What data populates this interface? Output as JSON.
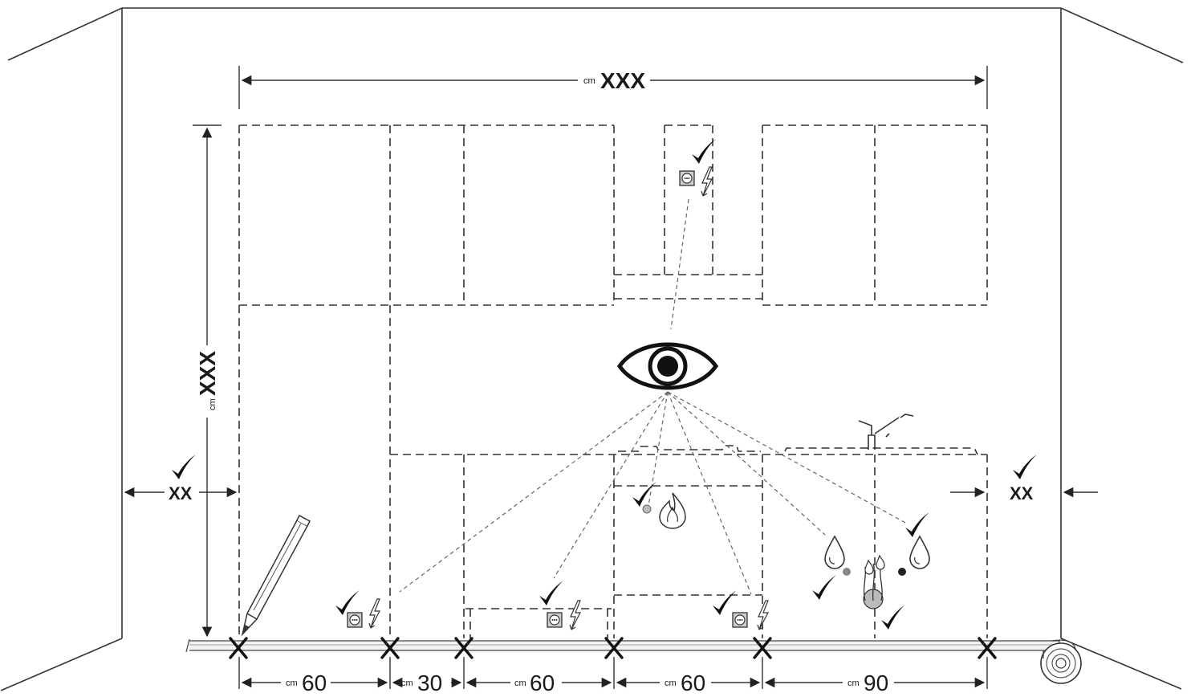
{
  "top_dimension": {
    "unit": "cm",
    "value": "XXX"
  },
  "height_dimension": {
    "unit": "cm",
    "value": "XXX"
  },
  "left_clearance": {
    "value": "XX"
  },
  "right_clearance": {
    "value": "XX"
  },
  "bottom_dimensions": [
    {
      "unit": "cm",
      "value": "60"
    },
    {
      "unit": "cm",
      "value": "30"
    },
    {
      "unit": "cm",
      "value": "60"
    },
    {
      "unit": "cm",
      "value": "60"
    },
    {
      "unit": "cm",
      "value": "90"
    }
  ],
  "icons": [
    "checkmark-icon",
    "electrical-outlet-icon",
    "lightning-icon",
    "flame-icon",
    "water-drop-icon",
    "eye-icon",
    "pencil-icon",
    "tape-measure-icon",
    "faucet-icon",
    "cross-mark-icon"
  ],
  "colors": {
    "line": "#333333",
    "grey_fill": "#d0d0d0",
    "dot": "#888888"
  }
}
